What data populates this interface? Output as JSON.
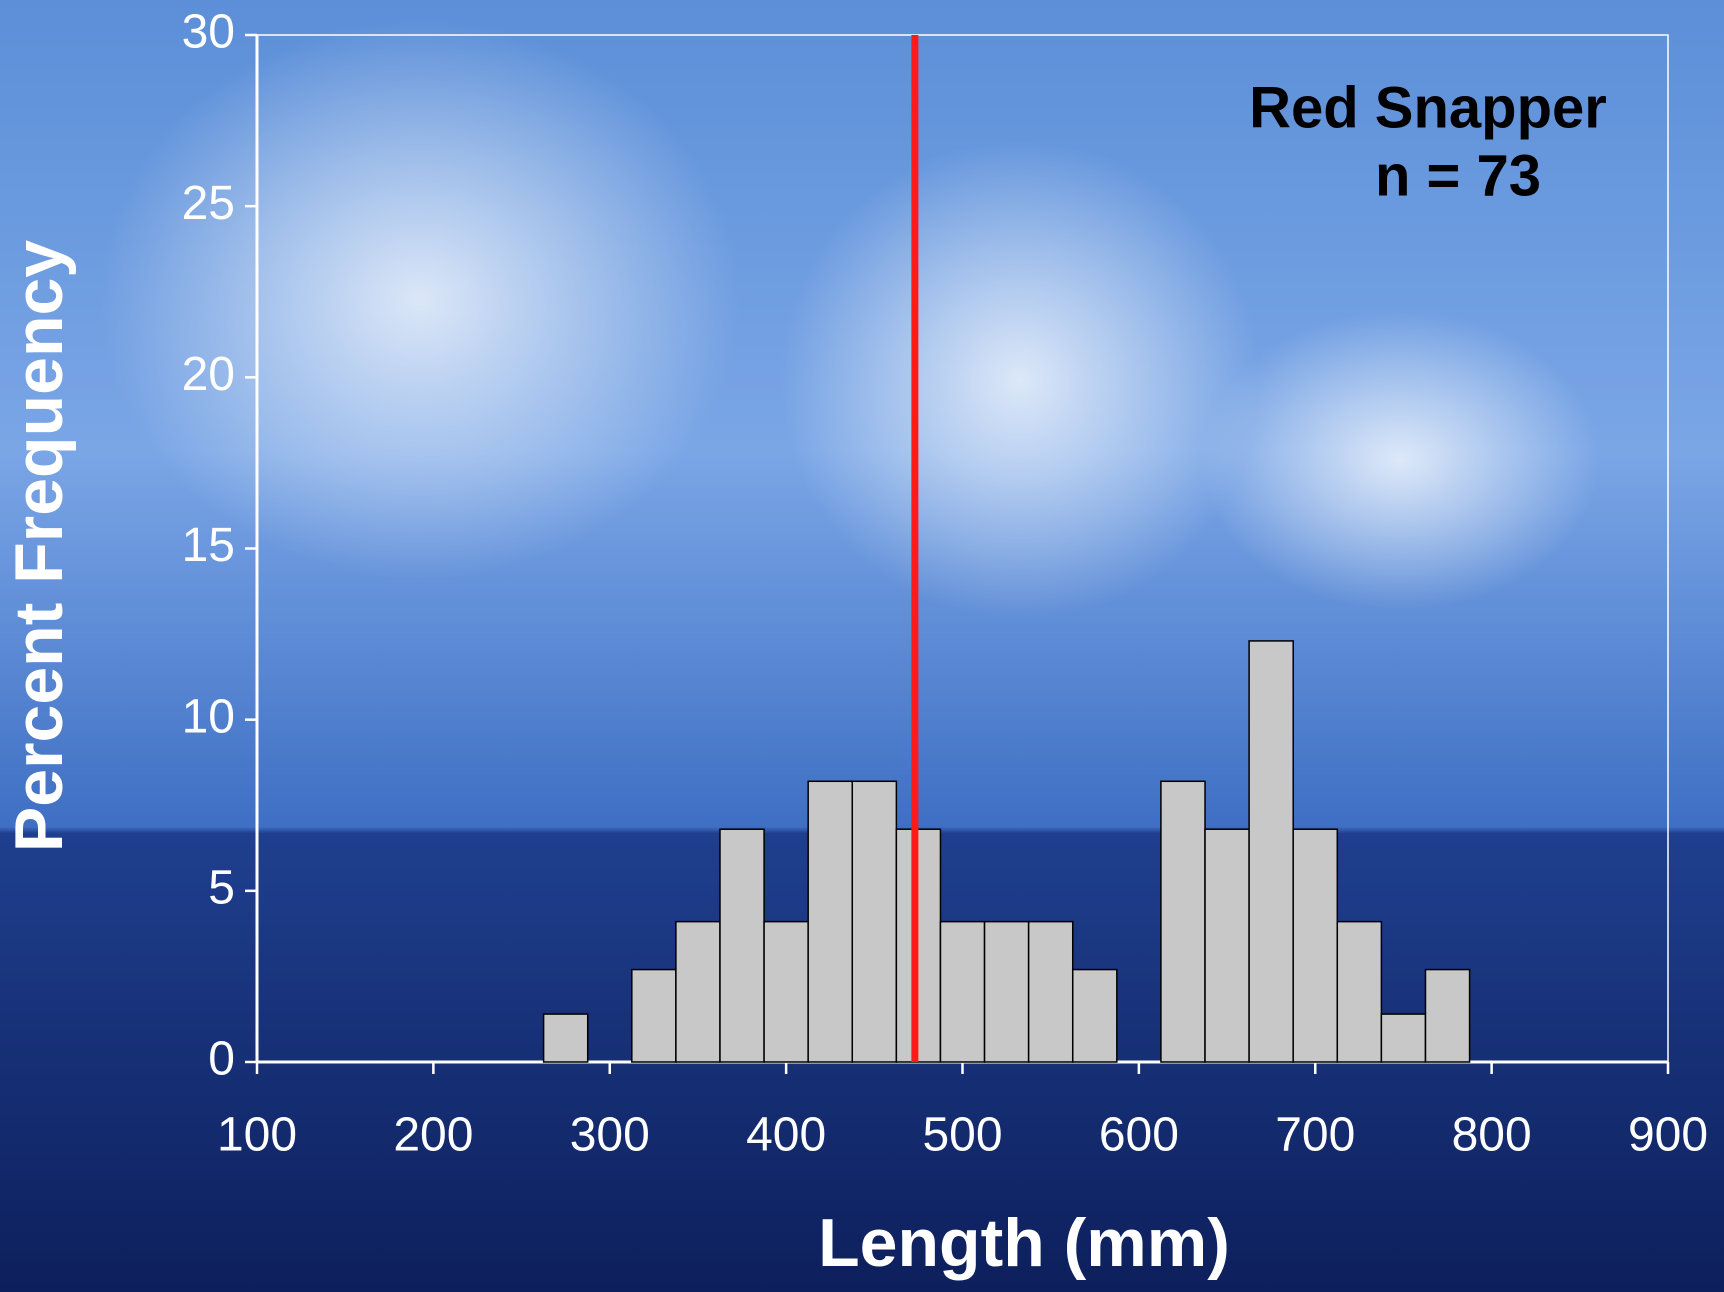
{
  "chart_data": {
    "type": "histogram",
    "x_label": "Length (mm)",
    "y_label": "Percent Frequency",
    "annotations": [
      "Red Snapper",
      "n = 73"
    ],
    "bins": [
      262.5,
      287.5,
      312.5,
      337.5,
      362.5,
      387.5,
      412.5,
      437.5,
      462.5,
      487.5,
      512.5,
      537.5,
      562.5,
      587.5,
      612.5,
      637.5,
      662.5,
      687.5,
      712.5,
      737.5,
      762.5,
      787.5
    ],
    "values": [
      1.4,
      0,
      2.7,
      4.1,
      6.8,
      4.1,
      8.2,
      8.2,
      6.8,
      4.1,
      4.1,
      4.1,
      2.7,
      0,
      8.2,
      6.8,
      12.3,
      6.8,
      4.1,
      1.4,
      2.7
    ],
    "color": "#c8c8c8",
    "vline": {
      "x": 473,
      "color": "#ff1a1a"
    },
    "xlim": [
      100,
      900
    ],
    "xticks": [
      100,
      200,
      300,
      400,
      500,
      600,
      700,
      800,
      900
    ],
    "ylim": [
      0,
      30
    ],
    "yticks": [
      0,
      5,
      10,
      15,
      20,
      25,
      30
    ]
  }
}
